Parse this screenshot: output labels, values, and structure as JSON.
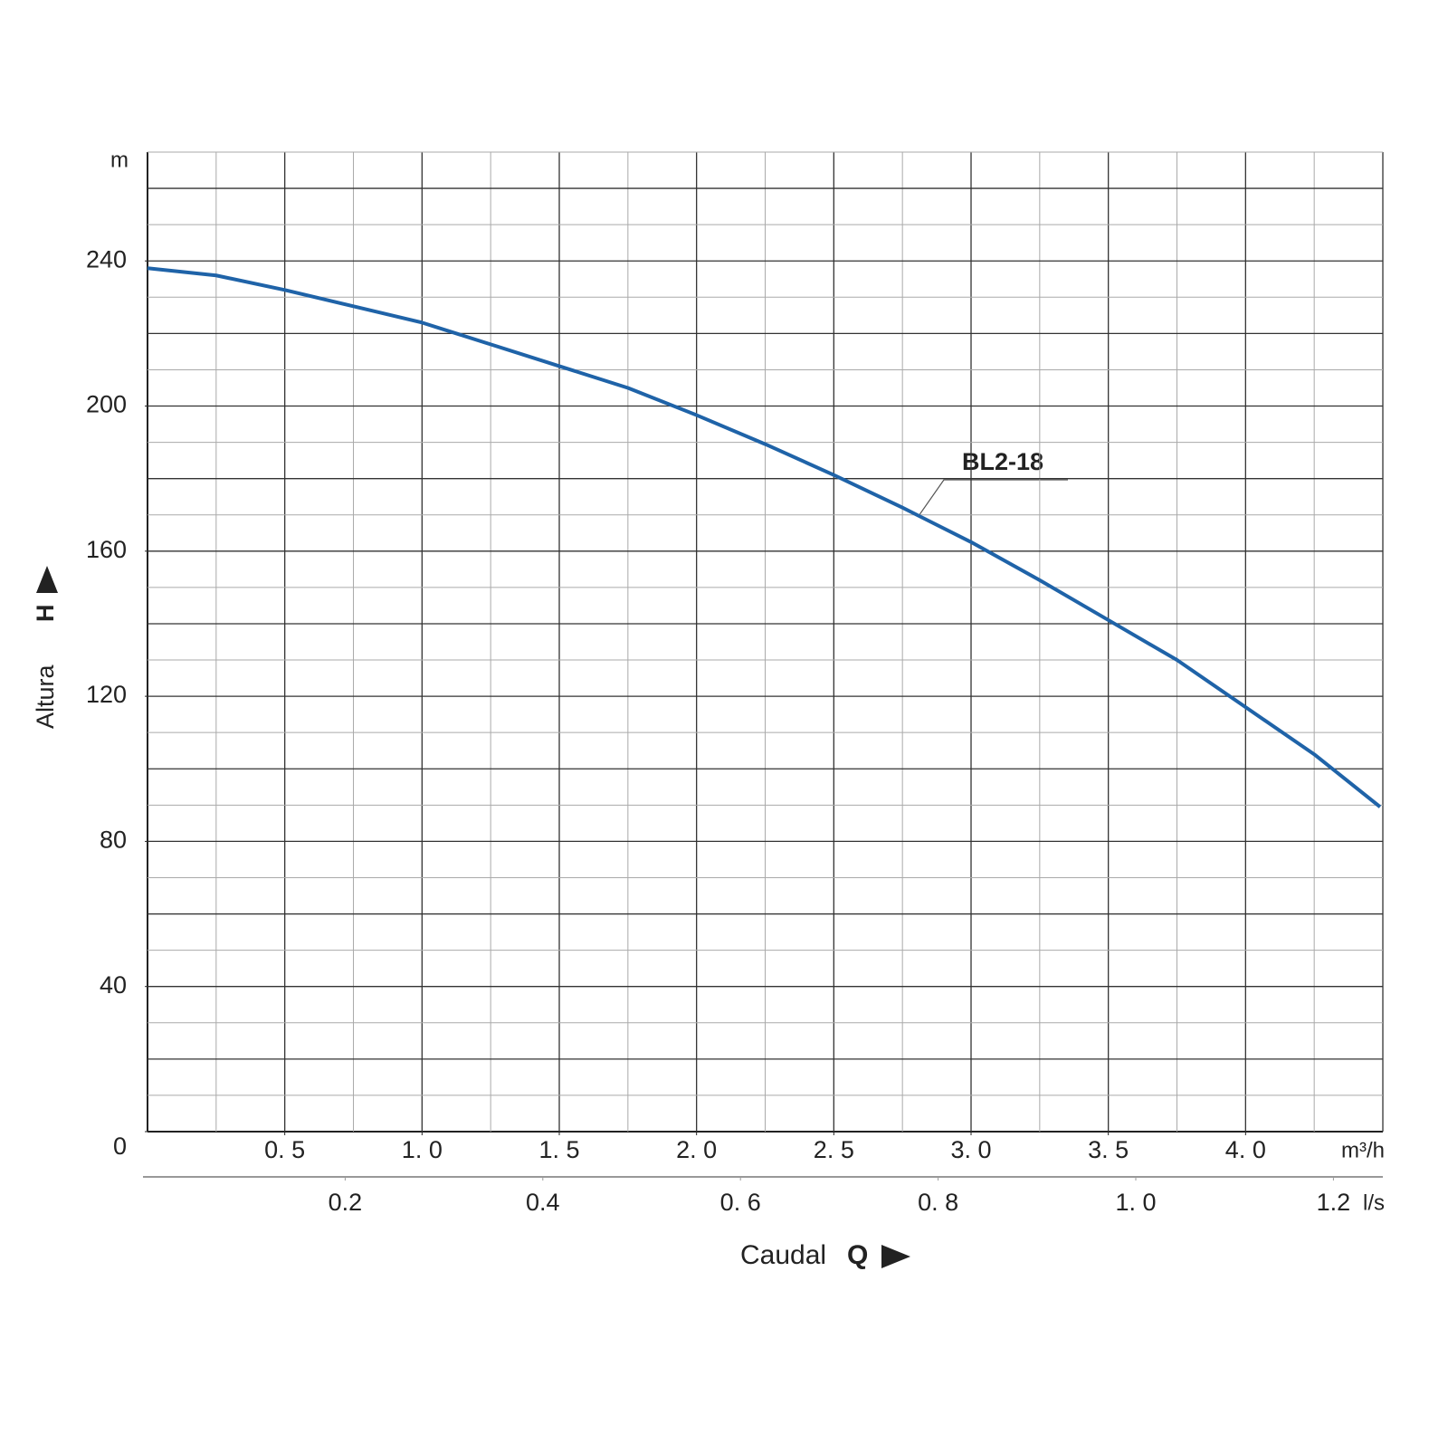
{
  "chart_data": {
    "type": "line",
    "y_label": "Altura",
    "y_symbol": "H",
    "y_unit": "m",
    "x_label": "Caudal",
    "x_symbol": "Q",
    "x_unit": "m³/h",
    "x2_unit": "l/s",
    "x": [
      0,
      0.25,
      0.5,
      0.75,
      1.0,
      1.25,
      1.5,
      1.75,
      2.0,
      2.25,
      2.5,
      2.75,
      3.0,
      3.25,
      3.5,
      3.75,
      4.0,
      4.25,
      4.49
    ],
    "series": [
      {
        "name": "BL2-18",
        "color": "#1f63a8",
        "values": [
          238,
          236,
          232,
          227.5,
          223,
          217,
          211,
          205,
          197.5,
          189.5,
          181,
          172,
          162.5,
          152,
          141,
          130,
          117,
          104,
          89.5
        ]
      }
    ],
    "xlim": [
      0,
      4.5
    ],
    "ylim": [
      0,
      270
    ],
    "x2lim": [
      0,
      1.25
    ],
    "xticks": [
      {
        "value": 0.5,
        "label": "0. 5"
      },
      {
        "value": 1.0,
        "label": "1. 0"
      },
      {
        "value": 1.5,
        "label": "1. 5"
      },
      {
        "value": 2.0,
        "label": "2. 0"
      },
      {
        "value": 2.5,
        "label": "2. 5"
      },
      {
        "value": 3.0,
        "label": "3. 0"
      },
      {
        "value": 3.5,
        "label": "3. 5"
      },
      {
        "value": 4.0,
        "label": "4. 0"
      }
    ],
    "x2ticks": [
      0.2,
      0.4,
      {
        "value": 0.6,
        "label": "0. 6"
      },
      {
        "value": 0.8,
        "label": "0. 8"
      },
      {
        "value": 1.0,
        "label": "1. 0"
      },
      1.2
    ],
    "yticks": [
      0,
      40,
      80,
      120,
      160,
      200,
      240
    ],
    "xgrid": [
      0.25,
      0.5,
      0.75,
      1.0,
      1.25,
      1.5,
      1.75,
      2.0,
      2.25,
      2.5,
      2.75,
      3.0,
      3.25,
      3.5,
      3.75,
      4.0,
      4.25,
      4.5
    ],
    "ygrid": [
      10,
      20,
      30,
      40,
      50,
      60,
      70,
      80,
      90,
      100,
      110,
      120,
      130,
      140,
      150,
      160,
      170,
      180,
      190,
      200,
      210,
      220,
      230,
      240,
      250,
      260,
      270
    ]
  }
}
